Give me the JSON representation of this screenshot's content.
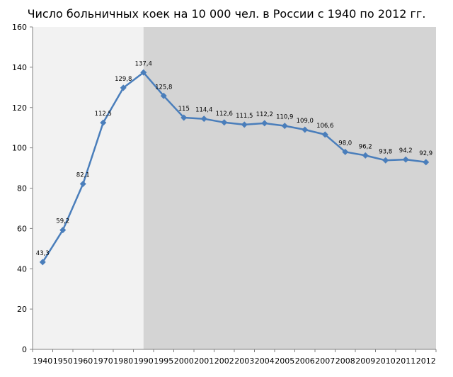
{
  "chart_data": {
    "type": "line",
    "title": "Число больничных коек на 10 000 чел. в России с 1940 по 2012 гг.",
    "xlabel": "",
    "ylabel": "",
    "ylim": [
      0,
      160
    ],
    "y_ticks": [
      "0",
      "20",
      "40",
      "60",
      "80",
      "100",
      "120",
      "140",
      "160"
    ],
    "categories": [
      "1940",
      "1950",
      "1960",
      "1970",
      "1980",
      "1990",
      "1995",
      "2000",
      "2001",
      "2002",
      "2003",
      "2004",
      "2005",
      "2006",
      "2007",
      "2008",
      "2009",
      "2010",
      "2011",
      "2012"
    ],
    "values": [
      43.3,
      59.2,
      82.1,
      112.5,
      129.8,
      137.4,
      125.8,
      115,
      114.4,
      112.6,
      111.5,
      112.2,
      110.9,
      109.0,
      106.6,
      98.0,
      96.2,
      93.8,
      94.2,
      92.9
    ],
    "data_labels": [
      "43,3",
      "59,2",
      "82,1",
      "112,5",
      "129,8",
      "137,4",
      "125,8",
      "115",
      "114,4",
      "112,6",
      "111,5",
      "112,2",
      "110,9",
      "109,0",
      "106,6",
      "98,0",
      "96,2",
      "93,8",
      "94,2",
      "92,9"
    ],
    "shaded_region": {
      "from_category": "1990",
      "to_category": "2012"
    },
    "grid": false,
    "legend": "none",
    "colors": {
      "line": "#4a7ebb",
      "background_left": "#f2f2f2",
      "background_right": "#d4d4d4",
      "axis": "#808080"
    }
  }
}
